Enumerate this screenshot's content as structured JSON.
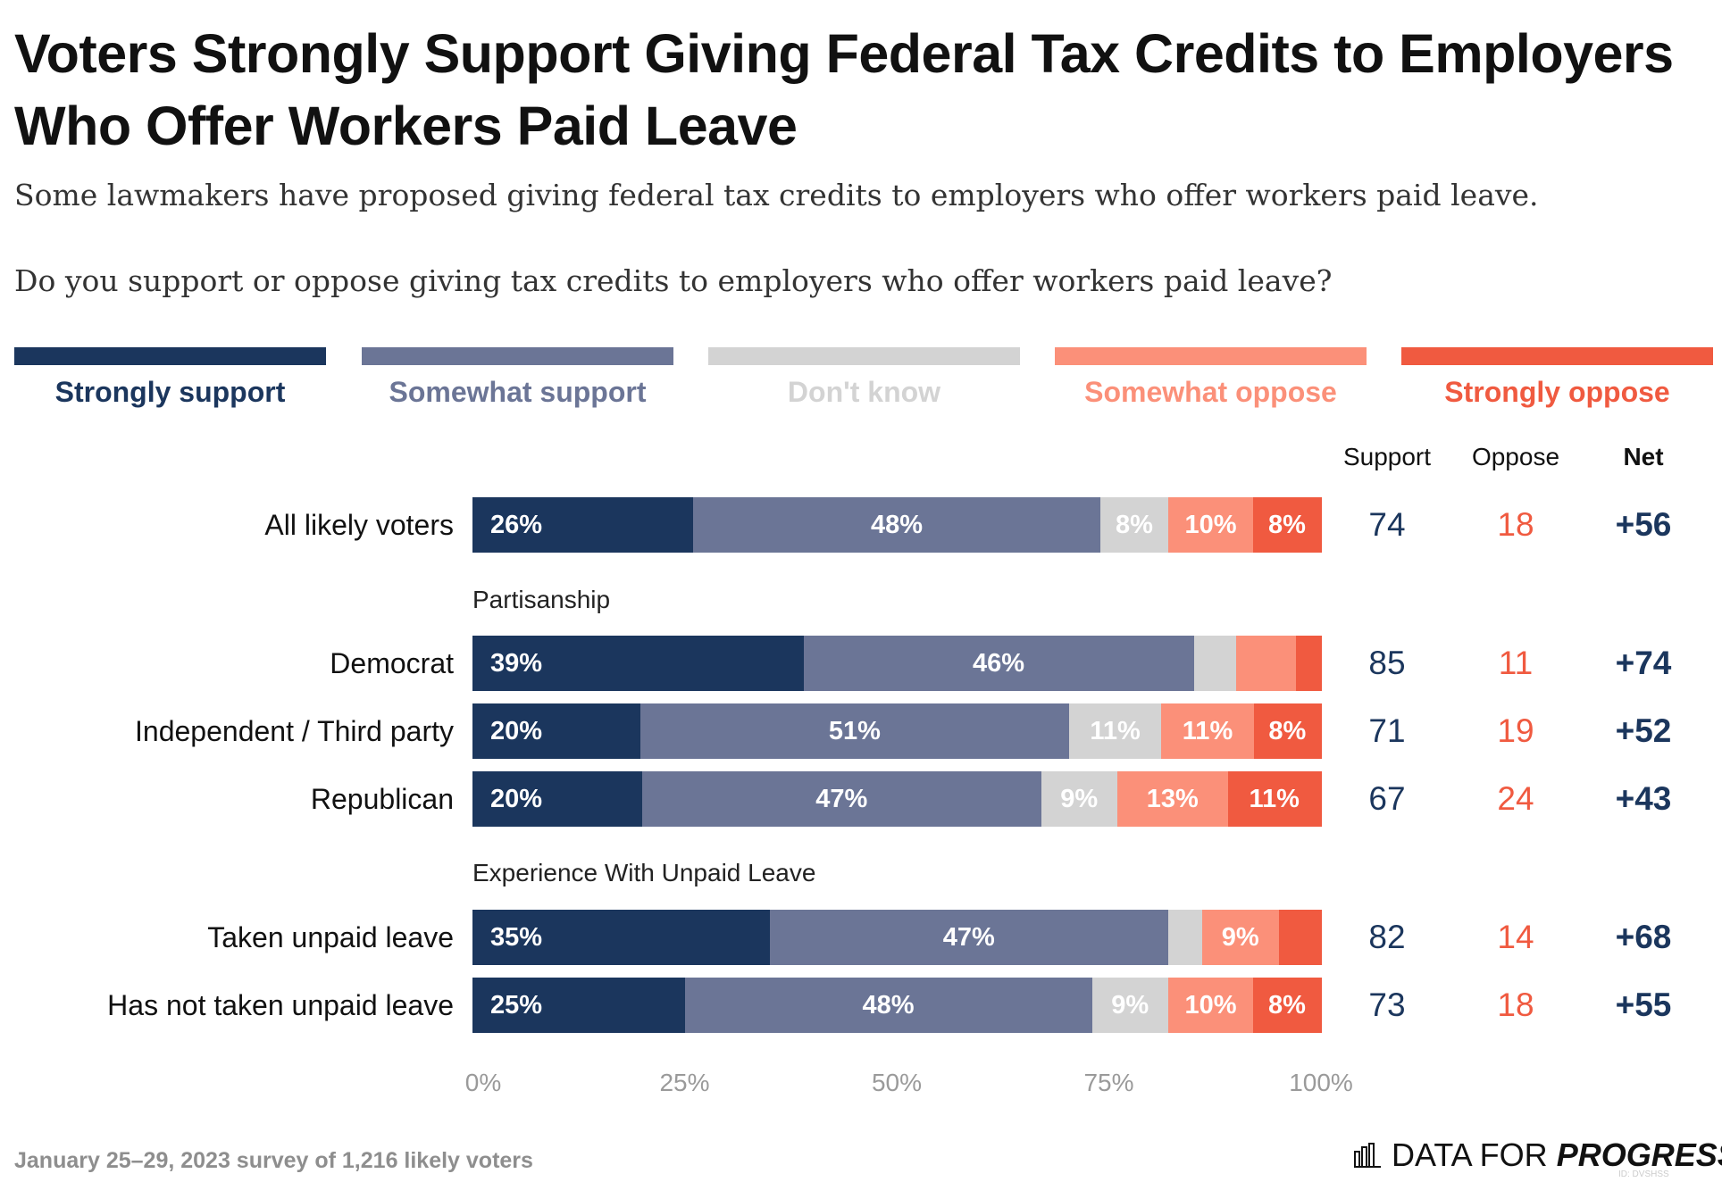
{
  "title": "Voters Strongly Support Giving Federal Tax Credits to Employers Who Offer Workers Paid Leave",
  "subtitle": "Some lawmakers have proposed giving federal tax credits to employers who offer workers paid leave.",
  "question": "Do you support or oppose giving tax credits to employers who offer workers paid leave?",
  "colors": {
    "strongly_support": "#1b365d",
    "somewhat_support": "#6b7596",
    "dont_know": "#d3d3d3",
    "somewhat_oppose": "#fb9079",
    "strongly_oppose": "#f05a40",
    "support_text": "#1b365d",
    "oppose_text": "#f05a40"
  },
  "column_headers": {
    "support": "Support",
    "oppose": "Oppose",
    "net": "Net"
  },
  "footer": "January 25–29, 2023 survey of 1,216 likely voters",
  "brand": {
    "text_regular": "DATA FOR ",
    "text_bold": "PROGRESS",
    "icon": "bar-chart-logo-icon",
    "id_text": "ID: DVSHSS"
  },
  "chart_data": {
    "type": "bar",
    "orientation": "horizontal",
    "stacked": true,
    "xlim": [
      0,
      100
    ],
    "x_ticks": [
      "0%",
      "25%",
      "50%",
      "75%",
      "100%"
    ],
    "legend_position": "top",
    "series": [
      {
        "name": "Strongly support",
        "key": "strongly_support"
      },
      {
        "name": "Somewhat support",
        "key": "somewhat_support"
      },
      {
        "name": "Don't know",
        "key": "dont_know"
      },
      {
        "name": "Somewhat oppose",
        "key": "somewhat_oppose"
      },
      {
        "name": "Strongly oppose",
        "key": "strongly_oppose"
      }
    ],
    "groups": [
      {
        "label": "",
        "rows": [
          {
            "label": "All likely voters",
            "values": [
              26,
              48,
              8,
              10,
              8
            ],
            "labels": [
              "26%",
              "48%",
              "8%",
              "10%",
              "8%"
            ],
            "support": "74",
            "oppose": "18",
            "net": "+56"
          }
        ]
      },
      {
        "label": "Partisanship",
        "rows": [
          {
            "label": "Democrat",
            "values": [
              39,
              46,
              5,
              7,
              3
            ],
            "labels": [
              "39%",
              "46%",
              "",
              "",
              ""
            ],
            "support": "85",
            "oppose": "11",
            "net": "+74"
          },
          {
            "label": "Independent / Third party",
            "values": [
              20,
              51,
              11,
              11,
              8
            ],
            "labels": [
              "20%",
              "51%",
              "11%",
              "11%",
              "8%"
            ],
            "support": "71",
            "oppose": "19",
            "net": "+52"
          },
          {
            "label": "Republican",
            "values": [
              20,
              47,
              9,
              13,
              11
            ],
            "labels": [
              "20%",
              "47%",
              "9%",
              "13%",
              "11%"
            ],
            "support": "67",
            "oppose": "24",
            "net": "+43"
          }
        ]
      },
      {
        "label": "Experience With Unpaid Leave",
        "rows": [
          {
            "label": "Taken unpaid leave",
            "values": [
              35,
              47,
              4,
              9,
              5
            ],
            "labels": [
              "35%",
              "47%",
              "",
              "9%",
              ""
            ],
            "support": "82",
            "oppose": "14",
            "net": "+68"
          },
          {
            "label": "Has not taken unpaid leave",
            "values": [
              25,
              48,
              9,
              10,
              8
            ],
            "labels": [
              "25%",
              "48%",
              "9%",
              "10%",
              "8%"
            ],
            "support": "73",
            "oppose": "18",
            "net": "+55"
          }
        ]
      }
    ]
  }
}
